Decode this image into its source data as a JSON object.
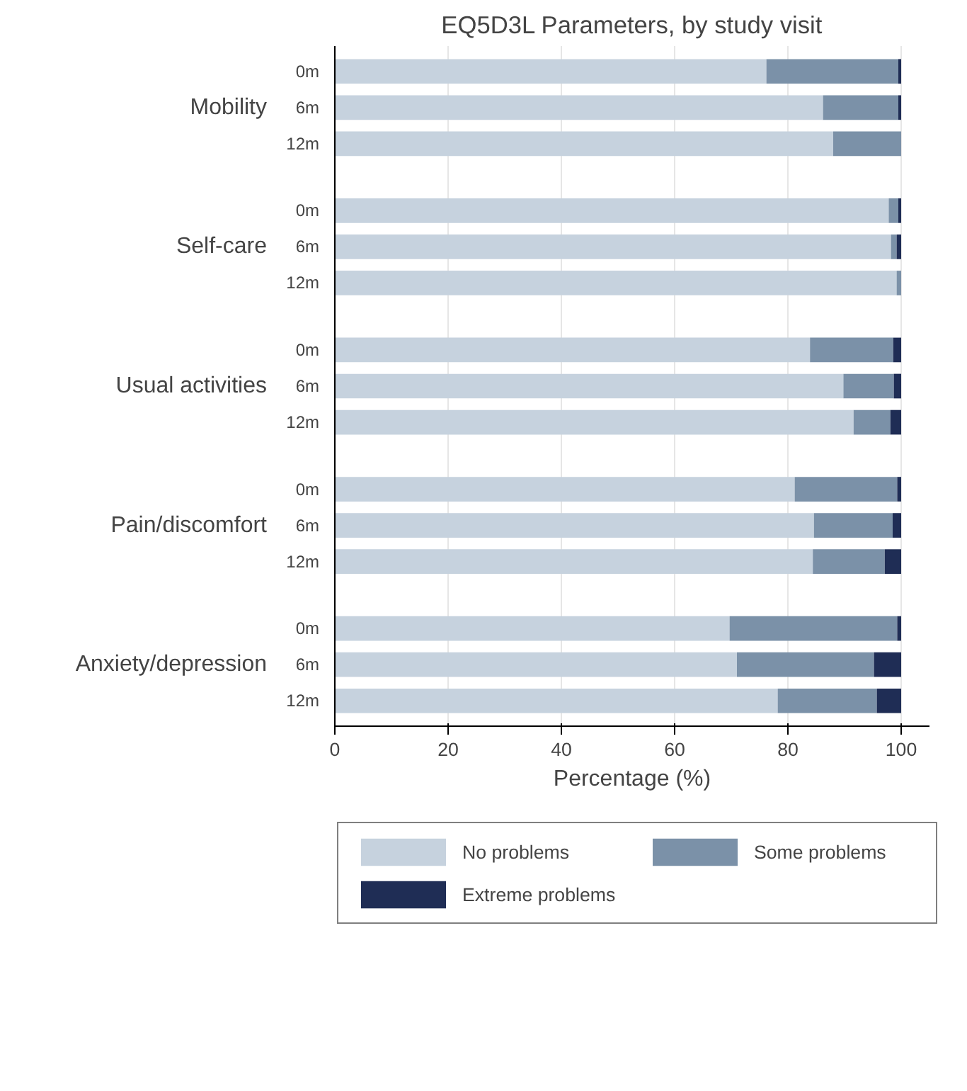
{
  "chart_data": {
    "type": "bar",
    "orientation": "horizontal",
    "stacked": true,
    "title": "EQ5D3L Parameters, by study visit",
    "xlabel": "Percentage (%)",
    "categories": [
      "0m",
      "6m",
      "12m",
      "0m",
      "6m",
      "12m",
      "0m",
      "6m",
      "12m",
      "0m",
      "6m",
      "12m",
      "0m",
      "6m",
      "12m"
    ],
    "annotations": [
      "Mobility",
      "Self-care",
      "Usual activities",
      "Pain/discomfort",
      "Anxiety/depression"
    ],
    "series": [
      {
        "name": "No problems",
        "color": "#c6d2de",
        "values": [
          76.2,
          86.2,
          88.0,
          97.8,
          98.2,
          99.2,
          83.9,
          89.8,
          91.6,
          81.2,
          84.6,
          84.4,
          69.7,
          71.0,
          78.2
        ]
      },
      {
        "name": "Some problems",
        "color": "#7b91a8",
        "values": [
          23.3,
          13.3,
          12.0,
          1.7,
          1.0,
          0.8,
          14.7,
          8.9,
          6.5,
          18.1,
          13.9,
          12.7,
          29.6,
          24.2,
          17.5
        ]
      },
      {
        "name": "Extreme problems",
        "color": "#1f2d55",
        "values": [
          0.5,
          0.5,
          0,
          0.5,
          0.8,
          0,
          1.4,
          1.3,
          1.9,
          0.7,
          1.5,
          2.9,
          0.7,
          4.8,
          4.3
        ]
      }
    ],
    "xlim": [
      0,
      105
    ],
    "xticks": [
      0,
      20,
      40,
      60,
      80,
      100
    ],
    "grid": "x",
    "legend": "bottom"
  }
}
